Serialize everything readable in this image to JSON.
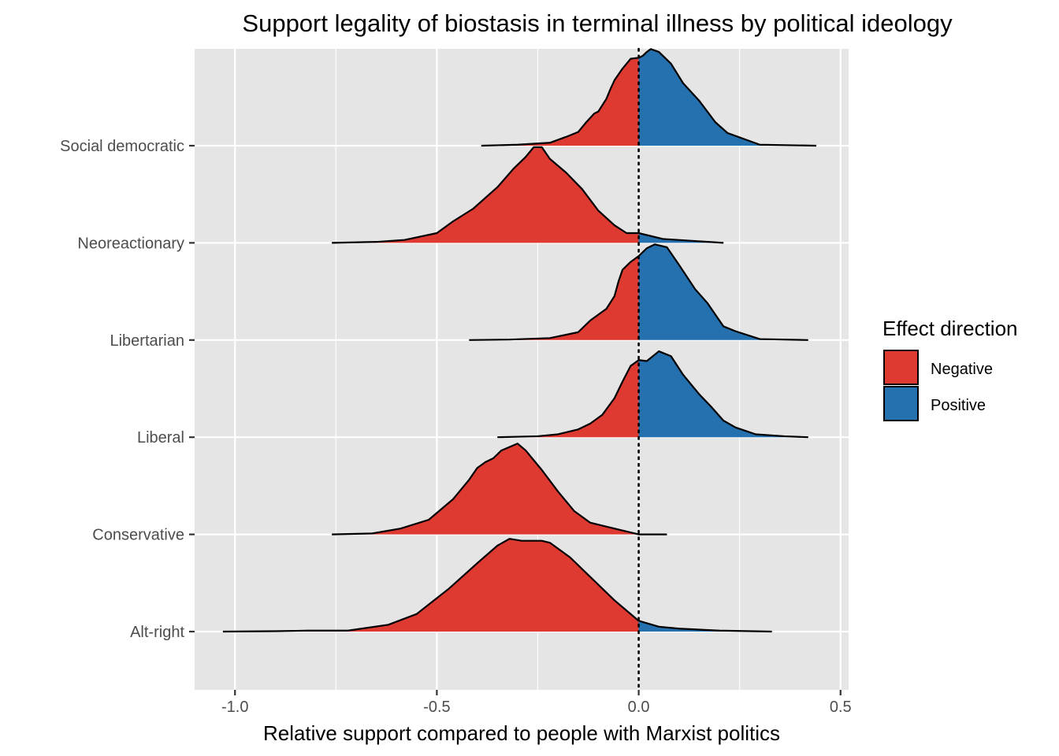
{
  "chart_data": {
    "type": "ridgeline",
    "title": "Support legality of biostasis in terminal illness by political ideology",
    "xlabel": "Relative support compared to people with Marxist politics",
    "ylabel": "",
    "xlim": [
      -1.1,
      0.52
    ],
    "x_ticks": [
      -1.0,
      -0.5,
      0.0,
      0.5
    ],
    "x_tick_labels": [
      "-1.0",
      "-0.5",
      "0.0",
      "0.5"
    ],
    "reference_line": 0.0,
    "categories": [
      "Alt-right",
      "Conservative",
      "Liberal",
      "Libertarian",
      "Neoreactionary",
      "Social democratic"
    ],
    "legend": {
      "title": "Effect direction",
      "position": "right",
      "entries": [
        {
          "label": "Negative",
          "color": "#de3a32"
        },
        {
          "label": "Positive",
          "color": "#2570ae"
        }
      ]
    },
    "series": [
      {
        "name": "Alt-right",
        "density": [
          [
            -1.03,
            0
          ],
          [
            -0.9,
            0.004
          ],
          [
            -0.82,
            0.01
          ],
          [
            -0.72,
            0.01
          ],
          [
            -0.62,
            0.07
          ],
          [
            -0.55,
            0.18
          ],
          [
            -0.47,
            0.44
          ],
          [
            -0.4,
            0.7
          ],
          [
            -0.35,
            0.88
          ],
          [
            -0.32,
            0.95
          ],
          [
            -0.29,
            0.93
          ],
          [
            -0.24,
            0.93
          ],
          [
            -0.22,
            0.91
          ],
          [
            -0.17,
            0.76
          ],
          [
            -0.12,
            0.56
          ],
          [
            -0.06,
            0.32
          ],
          [
            0.0,
            0.11
          ],
          [
            0.05,
            0.05
          ],
          [
            0.1,
            0.03
          ],
          [
            0.2,
            0.01
          ],
          [
            0.33,
            0.0
          ]
        ]
      },
      {
        "name": "Conservative",
        "density": [
          [
            -0.76,
            0
          ],
          [
            -0.66,
            0.01
          ],
          [
            -0.59,
            0.06
          ],
          [
            -0.52,
            0.15
          ],
          [
            -0.46,
            0.36
          ],
          [
            -0.42,
            0.56
          ],
          [
            -0.4,
            0.68
          ],
          [
            -0.38,
            0.74
          ],
          [
            -0.36,
            0.78
          ],
          [
            -0.34,
            0.86
          ],
          [
            -0.3,
            0.93
          ],
          [
            -0.28,
            0.86
          ],
          [
            -0.24,
            0.66
          ],
          [
            -0.2,
            0.44
          ],
          [
            -0.16,
            0.24
          ],
          [
            -0.12,
            0.12
          ],
          [
            -0.06,
            0.06
          ],
          [
            0.0,
            0.0
          ],
          [
            0.07,
            0.0
          ]
        ]
      },
      {
        "name": "Liberal",
        "density": [
          [
            -0.35,
            0.0
          ],
          [
            -0.25,
            0.01
          ],
          [
            -0.2,
            0.03
          ],
          [
            -0.15,
            0.08
          ],
          [
            -0.12,
            0.14
          ],
          [
            -0.09,
            0.23
          ],
          [
            -0.06,
            0.4
          ],
          [
            -0.04,
            0.57
          ],
          [
            -0.02,
            0.73
          ],
          [
            0.0,
            0.79
          ],
          [
            0.02,
            0.78
          ],
          [
            0.05,
            0.88
          ],
          [
            0.08,
            0.83
          ],
          [
            0.11,
            0.64
          ],
          [
            0.15,
            0.44
          ],
          [
            0.18,
            0.31
          ],
          [
            0.21,
            0.17
          ],
          [
            0.24,
            0.1
          ],
          [
            0.29,
            0.03
          ],
          [
            0.36,
            0.01
          ],
          [
            0.42,
            0.0
          ]
        ]
      },
      {
        "name": "Libertarian",
        "density": [
          [
            -0.42,
            0.0
          ],
          [
            -0.32,
            0.005
          ],
          [
            -0.22,
            0.02
          ],
          [
            -0.15,
            0.08
          ],
          [
            -0.12,
            0.2
          ],
          [
            -0.08,
            0.32
          ],
          [
            -0.06,
            0.45
          ],
          [
            -0.05,
            0.6
          ],
          [
            -0.04,
            0.72
          ],
          [
            -0.02,
            0.8
          ],
          [
            0.0,
            0.86
          ],
          [
            0.02,
            0.94
          ],
          [
            0.04,
            0.98
          ],
          [
            0.07,
            0.95
          ],
          [
            0.1,
            0.77
          ],
          [
            0.14,
            0.52
          ],
          [
            0.17,
            0.38
          ],
          [
            0.21,
            0.14
          ],
          [
            0.24,
            0.09
          ],
          [
            0.3,
            0.01
          ],
          [
            0.42,
            0.0
          ]
        ]
      },
      {
        "name": "Neoreactionary",
        "density": [
          [
            -0.76,
            0.0
          ],
          [
            -0.65,
            0.01
          ],
          [
            -0.58,
            0.03
          ],
          [
            -0.5,
            0.1
          ],
          [
            -0.46,
            0.22
          ],
          [
            -0.41,
            0.35
          ],
          [
            -0.38,
            0.46
          ],
          [
            -0.35,
            0.57
          ],
          [
            -0.31,
            0.76
          ],
          [
            -0.28,
            0.88
          ],
          [
            -0.26,
            0.98
          ],
          [
            -0.24,
            0.98
          ],
          [
            -0.22,
            0.86
          ],
          [
            -0.18,
            0.72
          ],
          [
            -0.14,
            0.55
          ],
          [
            -0.1,
            0.33
          ],
          [
            -0.06,
            0.18
          ],
          [
            -0.03,
            0.1
          ],
          [
            0.0,
            0.1
          ],
          [
            0.06,
            0.04
          ],
          [
            0.21,
            0.0
          ]
        ]
      },
      {
        "name": "Social democratic",
        "density": [
          [
            -0.39,
            0.0
          ],
          [
            -0.3,
            0.01
          ],
          [
            -0.22,
            0.03
          ],
          [
            -0.18,
            0.09
          ],
          [
            -0.15,
            0.14
          ],
          [
            -0.13,
            0.24
          ],
          [
            -0.11,
            0.33
          ],
          [
            -0.1,
            0.35
          ],
          [
            -0.08,
            0.48
          ],
          [
            -0.07,
            0.58
          ],
          [
            -0.06,
            0.67
          ],
          [
            -0.04,
            0.79
          ],
          [
            -0.02,
            0.89
          ],
          [
            0.0,
            0.9
          ],
          [
            0.01,
            0.92
          ],
          [
            0.02,
            0.96
          ],
          [
            0.03,
            0.99
          ],
          [
            0.05,
            0.96
          ],
          [
            0.08,
            0.84
          ],
          [
            0.11,
            0.64
          ],
          [
            0.15,
            0.46
          ],
          [
            0.19,
            0.24
          ],
          [
            0.22,
            0.13
          ],
          [
            0.3,
            0.01
          ],
          [
            0.44,
            0.0
          ]
        ]
      }
    ]
  }
}
